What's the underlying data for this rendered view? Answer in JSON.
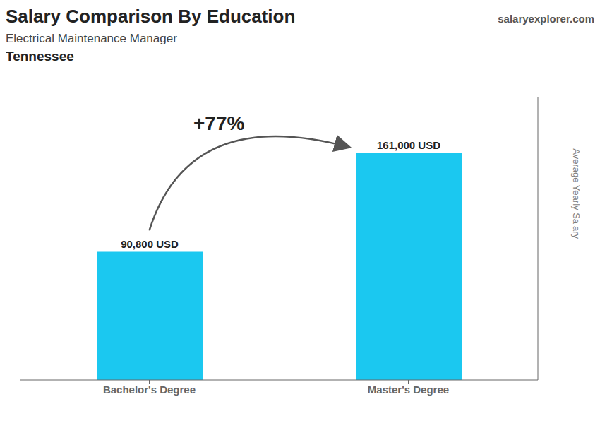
{
  "chart_data": {
    "type": "bar",
    "title": "Salary Comparison By Education",
    "subtitle": "Electrical Maintenance Manager",
    "annotations": [
      "Tennessee",
      "salaryexplorer.com",
      "+77%"
    ],
    "ylabel": "Average Yearly Salary",
    "categories": [
      "Bachelor's Degree",
      "Master's Degree"
    ],
    "values": [
      90800,
      161000
    ],
    "value_labels": [
      "90,800 USD",
      "161,000 USD"
    ],
    "data_labels": true,
    "color": "#1BC8F0",
    "ylim": [
      0,
      200000
    ],
    "grid": false,
    "tick_labels": "x"
  }
}
